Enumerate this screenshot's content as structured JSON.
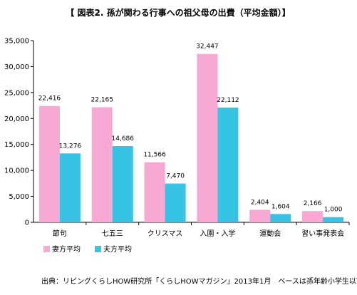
{
  "chart_data": {
    "type": "bar",
    "title": "【 図表2. 孫が関わる行事への祖父母の出費（平均金額）】",
    "categories": [
      "節句",
      "七五三",
      "クリスマス",
      "入園・入学",
      "運動会",
      "習い事発表会"
    ],
    "series": [
      {
        "name": "妻方平均",
        "values": [
          22416,
          22165,
          11566,
          32447,
          2404,
          2166
        ],
        "labels": [
          "22,416",
          "22,165",
          "11,566",
          "32,447",
          "2,404",
          "2,166"
        ],
        "color": "#f7a8d3"
      },
      {
        "name": "夫方平均",
        "values": [
          13276,
          14686,
          7470,
          22112,
          1604,
          1000
        ],
        "labels": [
          "13,276",
          "14,686",
          "7,470",
          "22,112",
          "1,604",
          "1,000"
        ],
        "color": "#37c3e4"
      }
    ],
    "y_ticks": [
      0,
      5000,
      10000,
      15000,
      20000,
      25000,
      30000,
      35000
    ],
    "y_tick_labels": [
      "0",
      "5,000",
      "10,000",
      "15,000",
      "20,000",
      "25,000",
      "30,000",
      "35,000"
    ],
    "ylim": [
      0,
      35000
    ],
    "legend_position": "bottom-left",
    "grid": false,
    "source": "出典：リビングくらしHOW研究所「くらしHOWマガジン」2013年1月　ベースは孫年齢小学生以下"
  }
}
